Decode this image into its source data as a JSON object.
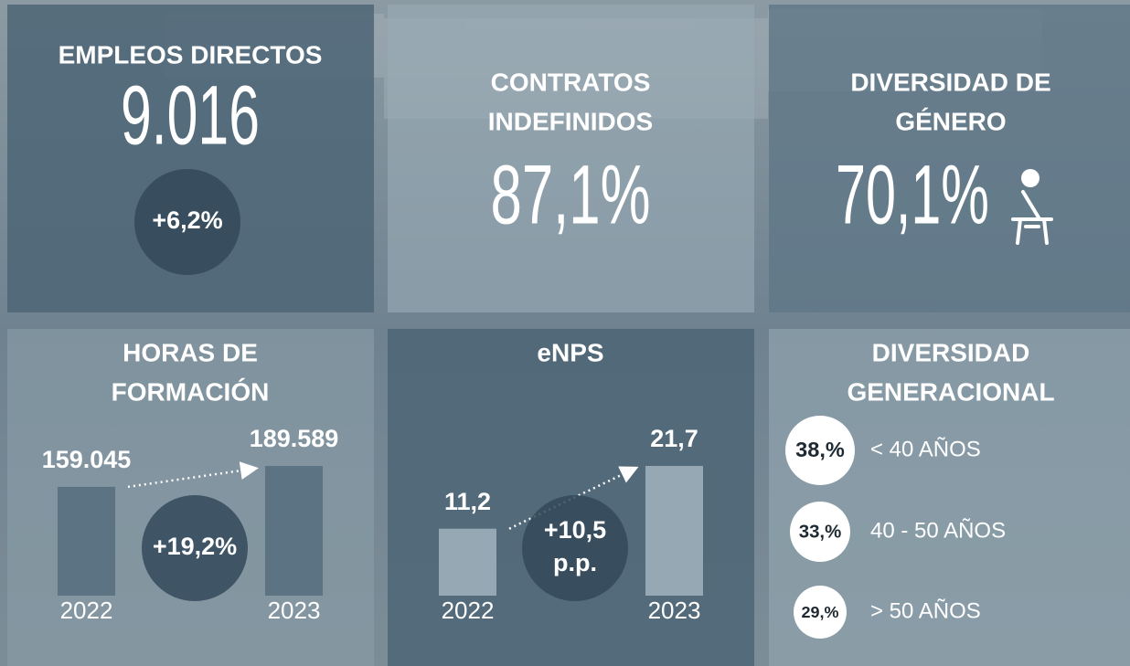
{
  "tiles": [
    {
      "title": [
        "EMPLEOS DIRECTOS"
      ],
      "value": "9.016",
      "change": [
        "+6,2%"
      ]
    },
    {
      "title": [
        "CONTRATOS",
        "INDEFINIDOS"
      ],
      "value": "87,1%"
    },
    {
      "title": [
        "DIVERSIDAD DE",
        "GÉNERO"
      ],
      "value": "70,1%"
    }
  ],
  "training": {
    "title": [
      "HORAS DE",
      "FORMACIÓN"
    ],
    "categories": [
      "2022",
      "2023"
    ],
    "values": [
      159045,
      189589
    ],
    "value_labels": [
      "159.045",
      "189.589"
    ],
    "change": [
      "+19,2%"
    ]
  },
  "enps": {
    "title": [
      "eNPS"
    ],
    "categories": [
      "2022",
      "2023"
    ],
    "values": [
      11.2,
      21.7
    ],
    "value_labels": [
      "11,2",
      "21,7"
    ],
    "change": [
      "+10,5",
      "p.p."
    ]
  },
  "generational": {
    "title": [
      "DIVERSIDAD",
      "GENERACIONAL"
    ],
    "groups": [
      "< 40 AÑOS",
      "40 - 50 AÑOS",
      "> 50 AÑOS"
    ],
    "values": [
      38,
      33,
      29
    ],
    "value_labels": [
      "38,%",
      "33,%",
      "29,%"
    ]
  }
}
